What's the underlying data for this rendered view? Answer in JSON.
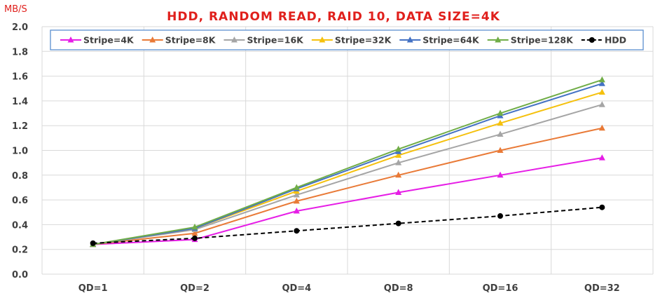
{
  "chart_data": {
    "type": "line",
    "title": "HDD, RANDOM READ, RAID 10, DATA SIZE=4K",
    "ylabel": "MB/S",
    "xlabel": "",
    "categories": [
      "QD=1",
      "QD=2",
      "QD=4",
      "QD=8",
      "QD=16",
      "QD=32"
    ],
    "ylim": [
      0,
      2.0
    ],
    "yticks": [
      "0.0",
      "0.2",
      "0.4",
      "0.6",
      "0.8",
      "1.0",
      "1.2",
      "1.4",
      "1.6",
      "1.8",
      "2.0"
    ],
    "grid": true,
    "legend_position": "top",
    "series": [
      {
        "name": "Stripe=4K",
        "color": "#e61ee6",
        "marker": "triangle",
        "dash": false,
        "values": [
          0.24,
          0.28,
          0.51,
          0.66,
          0.8,
          0.94
        ]
      },
      {
        "name": "Stripe=8K",
        "color": "#e97a37",
        "marker": "triangle",
        "dash": false,
        "values": [
          0.24,
          0.33,
          0.59,
          0.8,
          1.0,
          1.18
        ]
      },
      {
        "name": "Stripe=16K",
        "color": "#a5a5a5",
        "marker": "triangle",
        "dash": false,
        "values": [
          0.24,
          0.36,
          0.64,
          0.9,
          1.13,
          1.37
        ]
      },
      {
        "name": "Stripe=32K",
        "color": "#f5c10e",
        "marker": "triangle",
        "dash": false,
        "values": [
          0.24,
          0.37,
          0.67,
          0.96,
          1.22,
          1.47
        ]
      },
      {
        "name": "Stripe=64K",
        "color": "#4472c4",
        "marker": "triangle",
        "dash": false,
        "values": [
          0.24,
          0.37,
          0.69,
          0.99,
          1.28,
          1.54
        ]
      },
      {
        "name": "Stripe=128K",
        "color": "#70ad47",
        "marker": "triangle",
        "dash": false,
        "values": [
          0.24,
          0.38,
          0.7,
          1.01,
          1.3,
          1.57
        ]
      },
      {
        "name": "HDD",
        "color": "#000000",
        "marker": "circle",
        "dash": true,
        "values": [
          0.25,
          0.29,
          0.35,
          0.41,
          0.47,
          0.54
        ]
      }
    ]
  }
}
